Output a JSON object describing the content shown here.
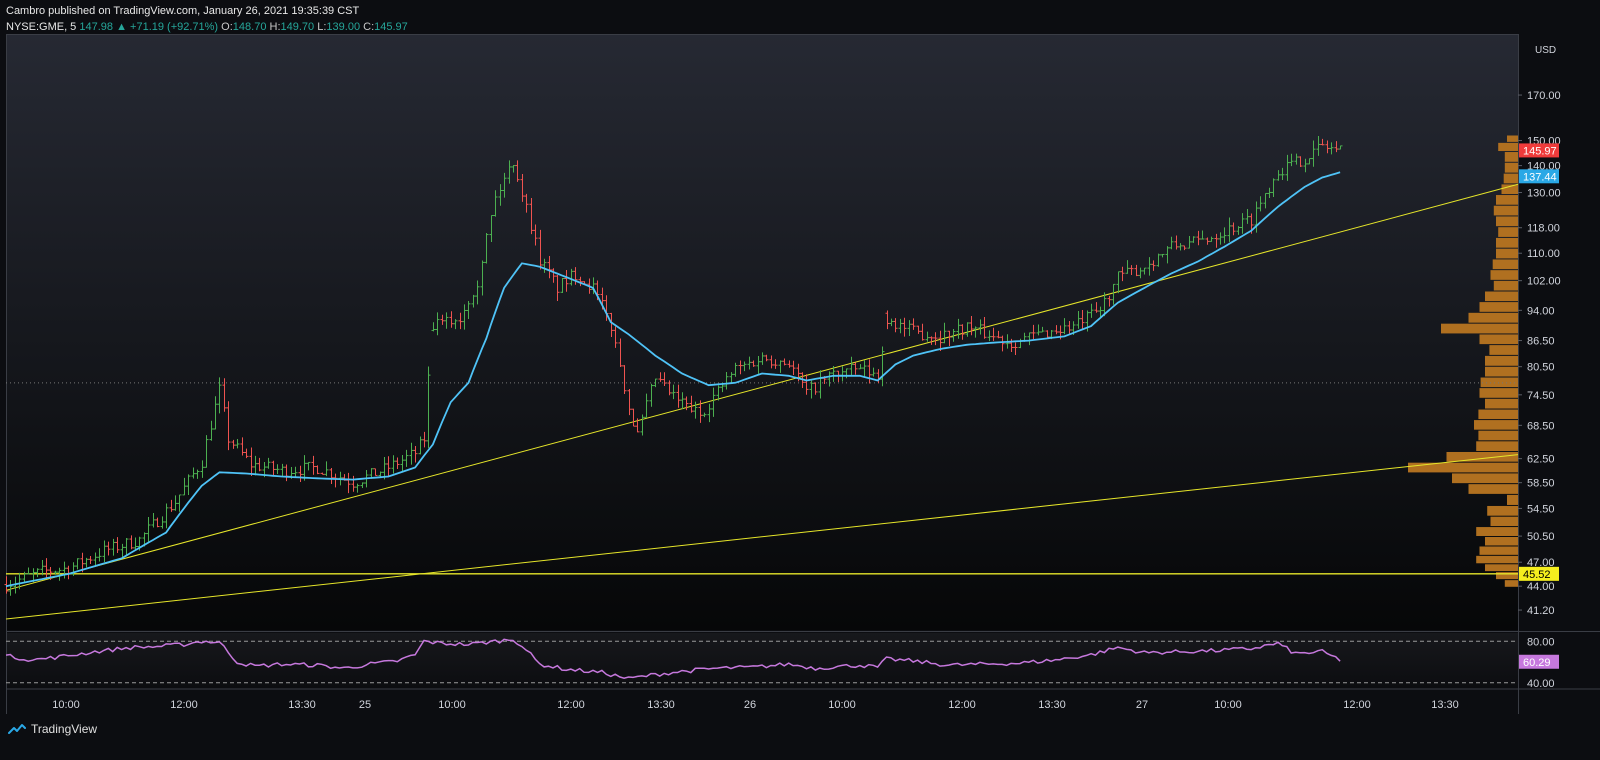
{
  "header": {
    "publish_line": "Cambro published on TradingView.com, January 26, 2021 19:35:39 CST",
    "symbol": "NYSE:GME, 5",
    "last": "147.98",
    "change": "+71.19 (+92.71%)",
    "open_label": "O:",
    "open": "148.70",
    "high_label": "H:",
    "high": "149.70",
    "low_label": "L:",
    "low": "139.00",
    "close_label": "C:",
    "close": "145.97"
  },
  "footer": {
    "brand": "TradingView",
    "icon": "tradingview-logo-icon"
  },
  "chart_data": {
    "type": "candlestick",
    "currency": "USD",
    "y_scale": "log",
    "price_ylim": [
      39,
      200
    ],
    "price_ticks": [
      "170.00",
      "150.00",
      "140.00",
      "130.00",
      "118.00",
      "110.00",
      "102.00",
      "94.00",
      "86.50",
      "80.50",
      "74.50",
      "68.50",
      "62.50",
      "58.50",
      "54.50",
      "50.50",
      "47.00",
      "44.00",
      "41.20"
    ],
    "x_ticks": [
      "10:00",
      "12:00",
      "13:30",
      "25",
      "10:00",
      "12:00",
      "13:30",
      "26",
      "10:00",
      "12:00",
      "13:30",
      "27",
      "10:00",
      "12:00",
      "13:30"
    ],
    "price_labels": {
      "last_close": "145.97",
      "moving_average": "137.44",
      "support_line": "45.52"
    },
    "colors": {
      "up": "#4caf50",
      "down": "#ef5350",
      "moving_average": "#4fc3f7",
      "trendlines": "#e6e62a",
      "volume_profile": "#b07020",
      "rsi": "#c678dd",
      "last_label_bg": "#ef3b3b",
      "ma_label_bg": "#2aa8e6",
      "support_label_bg": "#f5ee1e"
    },
    "price_anchors": [
      [
        0,
        44.2
      ],
      [
        8,
        45.8
      ],
      [
        14,
        46.2
      ],
      [
        22,
        48.5
      ],
      [
        30,
        50.0
      ],
      [
        38,
        55.5
      ],
      [
        44,
        62.0
      ],
      [
        48,
        75.5
      ],
      [
        50,
        66.0
      ],
      [
        55,
        61.5
      ],
      [
        62,
        60.5
      ],
      [
        70,
        61.0
      ],
      [
        78,
        58.5
      ],
      [
        86,
        61.0
      ],
      [
        92,
        63.5
      ],
      [
        94,
        66.0
      ],
      [
        96,
        90.0
      ],
      [
        102,
        92.0
      ],
      [
        106,
        102.0
      ],
      [
        110,
        128.0
      ],
      [
        114,
        142.0
      ],
      [
        116,
        130.0
      ],
      [
        120,
        108.0
      ],
      [
        124,
        100.0
      ],
      [
        128,
        104.0
      ],
      [
        132,
        100.0
      ],
      [
        136,
        90.0
      ],
      [
        140,
        72.0
      ],
      [
        142,
        66.5
      ],
      [
        146,
        78.0
      ],
      [
        150,
        74.0
      ],
      [
        156,
        70.5
      ],
      [
        164,
        80.0
      ],
      [
        170,
        82.5
      ],
      [
        176,
        81.5
      ],
      [
        180,
        75.0
      ],
      [
        186,
        79.0
      ],
      [
        192,
        80.0
      ],
      [
        196,
        78.5
      ],
      [
        198,
        92.0
      ],
      [
        204,
        88.5
      ],
      [
        210,
        87.5
      ],
      [
        216,
        90.0
      ],
      [
        222,
        87.5
      ],
      [
        226,
        86.0
      ],
      [
        232,
        88.0
      ],
      [
        240,
        90.0
      ],
      [
        246,
        94.0
      ],
      [
        250,
        103.0
      ],
      [
        256,
        106.0
      ],
      [
        262,
        112.0
      ],
      [
        268,
        113.5
      ],
      [
        274,
        117.0
      ],
      [
        280,
        121.0
      ],
      [
        286,
        138.0
      ],
      [
        292,
        143.0
      ],
      [
        296,
        148.0
      ],
      [
        300,
        146.0
      ]
    ],
    "ma_anchors": [
      [
        0,
        44.0
      ],
      [
        14,
        45.5
      ],
      [
        26,
        47.5
      ],
      [
        36,
        51.0
      ],
      [
        44,
        58.0
      ],
      [
        48,
        60.2
      ],
      [
        54,
        60.0
      ],
      [
        62,
        59.5
      ],
      [
        70,
        59.2
      ],
      [
        78,
        59.0
      ],
      [
        86,
        59.5
      ],
      [
        92,
        61.0
      ],
      [
        96,
        65.0
      ],
      [
        100,
        73.0
      ],
      [
        104,
        77.0
      ],
      [
        108,
        87.0
      ],
      [
        112,
        100.0
      ],
      [
        116,
        107.0
      ],
      [
        120,
        106.0
      ],
      [
        124,
        104.0
      ],
      [
        128,
        102.0
      ],
      [
        132,
        100.0
      ],
      [
        136,
        91.0
      ],
      [
        140,
        88.0
      ],
      [
        146,
        83.0
      ],
      [
        152,
        79.0
      ],
      [
        158,
        76.5
      ],
      [
        164,
        77.0
      ],
      [
        170,
        79.0
      ],
      [
        176,
        78.5
      ],
      [
        180,
        77.5
      ],
      [
        186,
        78.5
      ],
      [
        192,
        78.5
      ],
      [
        196,
        77.5
      ],
      [
        200,
        81.0
      ],
      [
        204,
        83.0
      ],
      [
        210,
        84.5
      ],
      [
        216,
        85.5
      ],
      [
        222,
        86.0
      ],
      [
        230,
        86.5
      ],
      [
        238,
        87.5
      ],
      [
        244,
        90.0
      ],
      [
        250,
        96.0
      ],
      [
        256,
        100.0
      ],
      [
        262,
        104.0
      ],
      [
        268,
        107.5
      ],
      [
        274,
        112.0
      ],
      [
        280,
        117.0
      ],
      [
        286,
        125.0
      ],
      [
        292,
        132.0
      ],
      [
        296,
        135.5
      ],
      [
        300,
        137.44
      ]
    ],
    "trendlines": [
      {
        "name": "",
        "from": [
          0,
          43.5
        ],
        "to": [
          340,
          133.0
        ]
      },
      {
        "name": "",
        "from": [
          0,
          40.2
        ],
        "to": [
          340,
          63.2
        ]
      },
      {
        "name": "",
        "horizontal": 45.52
      }
    ],
    "dotted_level": 77.0,
    "volume_profile": {
      "price_levels": [
        44.3,
        45.3,
        46.3,
        47.3,
        48.5,
        49.8,
        51.1,
        52.6,
        54.1,
        55.8,
        57.5,
        59.2,
        61.0,
        62.8,
        64.7,
        66.6,
        68.6,
        70.6,
        72.7,
        74.9,
        77.1,
        79.4,
        81.8,
        84.3,
        86.8,
        89.4,
        92.1,
        94.9,
        97.7,
        100.6,
        103.6,
        106.7,
        109.9,
        113.2,
        116.6,
        120.1,
        123.7,
        127.4,
        131.2,
        135.1,
        139.2,
        143.4,
        147.7,
        150.8
      ],
      "widths": [
        0.12,
        0.2,
        0.3,
        0.38,
        0.35,
        0.3,
        0.38,
        0.25,
        0.28,
        0.1,
        0.45,
        0.6,
        1.0,
        0.65,
        0.38,
        0.36,
        0.4,
        0.36,
        0.3,
        0.35,
        0.34,
        0.3,
        0.3,
        0.26,
        0.35,
        0.7,
        0.45,
        0.35,
        0.3,
        0.22,
        0.25,
        0.23,
        0.2,
        0.2,
        0.18,
        0.2,
        0.22,
        0.2,
        0.15,
        0.13,
        0.12,
        0.12,
        0.18,
        0.1
      ]
    },
    "rsi": {
      "levels": {
        "upper": 80.0,
        "lower": 40.0
      },
      "ticks": [
        "80.00",
        "40.00"
      ],
      "last": "60.29",
      "ylim": [
        35,
        88
      ],
      "anchors": [
        [
          0,
          66
        ],
        [
          6,
          62
        ],
        [
          12,
          65
        ],
        [
          20,
          70
        ],
        [
          28,
          74
        ],
        [
          34,
          75
        ],
        [
          40,
          77
        ],
        [
          44,
          80
        ],
        [
          48,
          79
        ],
        [
          52,
          60
        ],
        [
          56,
          56
        ],
        [
          62,
          58
        ],
        [
          70,
          57
        ],
        [
          76,
          54
        ],
        [
          82,
          58
        ],
        [
          88,
          61
        ],
        [
          92,
          67
        ],
        [
          94,
          80
        ],
        [
          98,
          78
        ],
        [
          104,
          77
        ],
        [
          110,
          80
        ],
        [
          114,
          82
        ],
        [
          116,
          76
        ],
        [
          120,
          58
        ],
        [
          126,
          53
        ],
        [
          134,
          50
        ],
        [
          140,
          44
        ],
        [
          146,
          48
        ],
        [
          152,
          51
        ],
        [
          160,
          54
        ],
        [
          168,
          55
        ],
        [
          176,
          58
        ],
        [
          182,
          54
        ],
        [
          188,
          56
        ],
        [
          192,
          57
        ],
        [
          196,
          55
        ],
        [
          198,
          63
        ],
        [
          204,
          61
        ],
        [
          212,
          57
        ],
        [
          220,
          58
        ],
        [
          228,
          59
        ],
        [
          236,
          62
        ],
        [
          244,
          67
        ],
        [
          250,
          74
        ],
        [
          256,
          69
        ],
        [
          264,
          70
        ],
        [
          272,
          71
        ],
        [
          280,
          73
        ],
        [
          286,
          78
        ],
        [
          290,
          68
        ],
        [
          296,
          70
        ],
        [
          300,
          62
        ]
      ]
    },
    "x_range": [
      0,
      340
    ],
    "title": "",
    "xlabel": "",
    "ylabel": ""
  }
}
